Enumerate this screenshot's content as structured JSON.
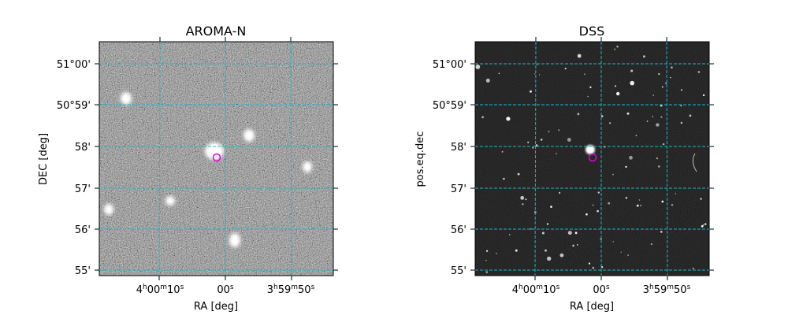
{
  "panels": [
    {
      "title": "AROMA-N",
      "xlabel": "RA [deg]",
      "ylabel": "DEC [deg]",
      "yticks": [
        "51°00'",
        "50°59'",
        "58'",
        "57'",
        "56'",
        "55'"
      ],
      "xticks": [
        {
          "main": "4",
          "u1": "h",
          "mid": "00",
          "u2": "m",
          "sec": "10",
          "u3": "s"
        },
        {
          "main": "",
          "u1": "",
          "mid": "",
          "u2": "",
          "sec": "00",
          "u3": "s"
        },
        {
          "main": "3",
          "u1": "h",
          "mid": "59",
          "u2": "m",
          "sec": "50",
          "u3": "s"
        }
      ],
      "style": "noisy"
    },
    {
      "title": "DSS",
      "xlabel": "RA [deg]",
      "ylabel": "pos.eq.dec",
      "yticks": [
        "51°00'",
        "50°59'",
        "58'",
        "57'",
        "56'",
        "55'"
      ],
      "xticks": [
        {
          "main": "4",
          "u1": "h",
          "mid": "00",
          "u2": "m",
          "sec": "10",
          "u3": "s"
        },
        {
          "main": "",
          "u1": "",
          "mid": "",
          "u2": "",
          "sec": "00",
          "u3": "s"
        },
        {
          "main": "3",
          "u1": "h",
          "mid": "59",
          "u2": "m",
          "sec": "50",
          "u3": "s"
        }
      ],
      "style": "dark"
    }
  ],
  "colors": {
    "grid": "#17b8c8",
    "marker": "#e000e0",
    "noise_bg": "#8a8a8a",
    "dss_bg": "#1e1e1e"
  }
}
